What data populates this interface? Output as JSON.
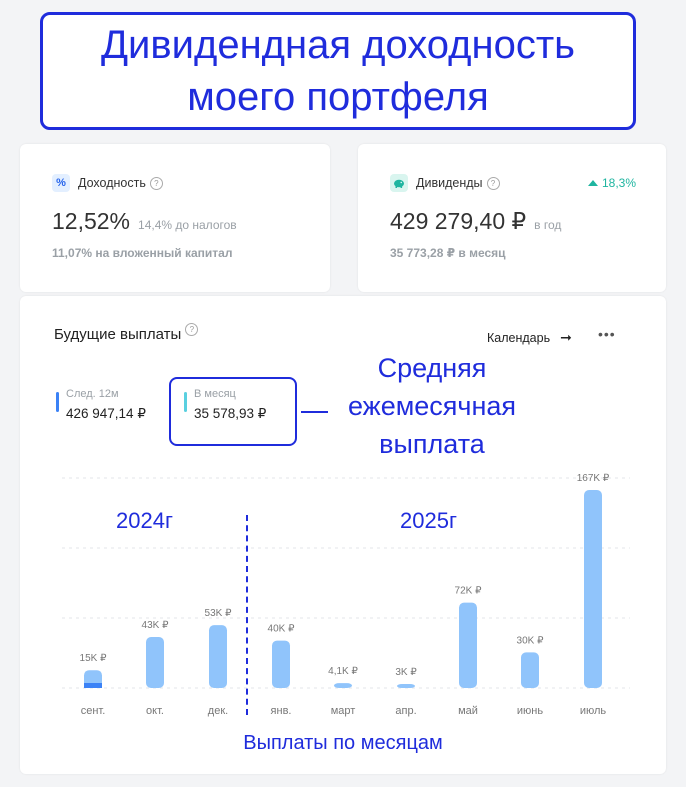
{
  "title": {
    "line1": "Дивидендная доходность",
    "line2": "моего портфеля"
  },
  "yield_card": {
    "label": "Доходность",
    "value": "12,52%",
    "pre_tax": "14,4% до налогов",
    "invested": "11,07% на вложенный капитал",
    "icon": "percent-icon"
  },
  "dividends_card": {
    "label": "Дивиденды",
    "value": "429 279,40 ₽",
    "period": "в год",
    "monthly": "35 773,28 ₽ в месяц",
    "growth": "18,3%",
    "icon": "piggy-bank-icon"
  },
  "future_payments": {
    "title": "Будущие выплаты",
    "calendar_link": "Календарь",
    "next12": {
      "label": "След. 12м",
      "value": "426 947,14 ₽"
    },
    "monthly": {
      "label": "В месяц",
      "value": "35 578,93 ₽"
    }
  },
  "annotation": {
    "line1": "Средняя",
    "line2": "ежемесячная",
    "line3": "выплата"
  },
  "years": {
    "left": "2024г",
    "right": "2025г"
  },
  "caption": "Выплаты по месяцам",
  "colors": {
    "accent": "#1f2cdc",
    "bar": "#90c4fb",
    "bar_dark": "#3b82f6",
    "growth": "#1fb5a0"
  },
  "chart_data": {
    "type": "bar",
    "categories": [
      "сент.",
      "окт.",
      "дек.",
      "янв.",
      "март",
      "апр.",
      "май",
      "июнь",
      "июль"
    ],
    "values": [
      15,
      43,
      53,
      40,
      4.1,
      3,
      72,
      30,
      167
    ],
    "value_labels": [
      "15K ₽",
      "43K ₽",
      "53K ₽",
      "40K ₽",
      "4,1K ₽",
      "3K ₽",
      "72K ₽",
      "30K ₽",
      "167K ₽"
    ],
    "paid": [
      5,
      0,
      0,
      0,
      0,
      0,
      0,
      0,
      0
    ],
    "ylim": [
      0,
      167
    ],
    "grid": true
  }
}
